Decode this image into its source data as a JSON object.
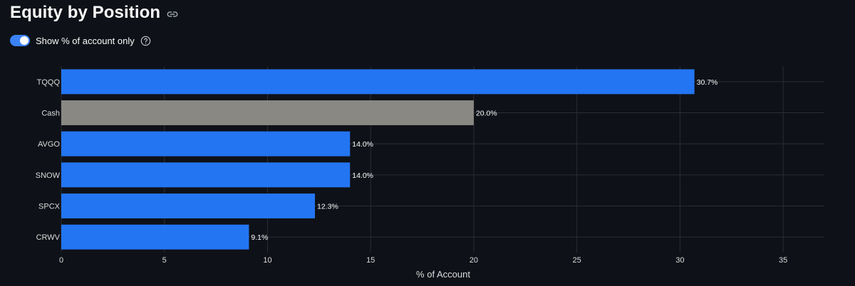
{
  "header": {
    "title": "Equity by Position"
  },
  "toggle": {
    "label": "Show % of account only",
    "checked": true
  },
  "colors": {
    "background": "#0e1117",
    "bar_primary": "#2375f2",
    "bar_cash": "#8a8883",
    "grid": "#2a2d33",
    "text": "#fafafa",
    "axis_text": "#dcdcdc"
  },
  "chart_data": {
    "type": "bar",
    "orientation": "horizontal",
    "categories": [
      "TQQQ",
      "Cash",
      "AVGO",
      "SNOW",
      "SPCX",
      "CRWV"
    ],
    "values": [
      30.7,
      20.0,
      14.0,
      14.0,
      12.3,
      9.1
    ],
    "data_labels": [
      "30.7%",
      "20.0%",
      "14.0%",
      "14.0%",
      "12.3%",
      "9.1%"
    ],
    "bar_colors": [
      "#2375f2",
      "#8a8883",
      "#2375f2",
      "#2375f2",
      "#2375f2",
      "#2375f2"
    ],
    "xlabel": "% of Account",
    "ylabel": "",
    "xlim": [
      0,
      37
    ],
    "xticks": [
      0,
      5,
      10,
      15,
      20,
      25,
      30,
      35
    ],
    "grid": true,
    "legend": "none"
  }
}
